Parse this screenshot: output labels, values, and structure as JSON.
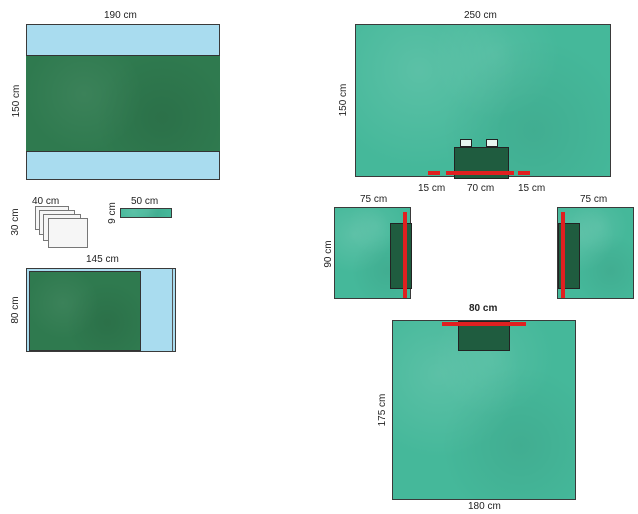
{
  "drape_top_left": {
    "width_label": "190 cm",
    "height_label": "150 cm"
  },
  "towels": {
    "width_label": "40 cm",
    "height_label": "30 cm"
  },
  "tape_strip": {
    "width_label": "50 cm",
    "height_label": "9 cm"
  },
  "drape_mid_left": {
    "width_label": "145 cm",
    "height_label": "80 cm"
  },
  "drape_top_right": {
    "width_label": "250 cm",
    "height_label": "150 cm",
    "segment_left": "15 cm",
    "segment_center": "70 cm",
    "segment_right": "15 cm"
  },
  "side_drape_left": {
    "width_label": "75 cm",
    "height_label": "90 cm"
  },
  "side_drape_right": {
    "width_label": "75 cm"
  },
  "drape_bottom": {
    "top_label": "80 cm",
    "height_label": "175 cm",
    "width_label": "180 cm"
  },
  "colors": {
    "light_blue": "#a9dcef",
    "dark_green": "#2f7a4f",
    "teal": "#45b89a",
    "adhesive_red": "#e02020"
  }
}
